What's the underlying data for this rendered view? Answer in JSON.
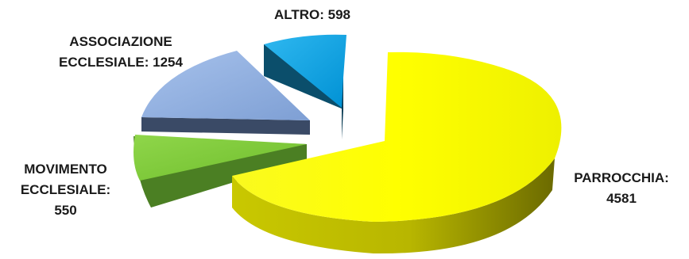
{
  "chart_data": {
    "type": "pie",
    "title": "",
    "series": [
      {
        "categories": [
          "PARROCCHIA",
          "MOVIMENTO ECCLESIALE",
          "ASSOCIAZIONE ECCLESIALE",
          "ALTRO"
        ],
        "values": [
          4581,
          550,
          1254,
          598
        ],
        "colors": [
          "#ffff00",
          "#7fcc3a",
          "#8eaee0",
          "#0aa6e8"
        ]
      }
    ],
    "labels": [
      {
        "lines": [
          "PARROCCHIA:",
          "4581"
        ]
      },
      {
        "lines": [
          "MOVIMENTO",
          "ECCLESIALE:",
          "550"
        ]
      },
      {
        "lines": [
          "ASSOCIAZIONE",
          "ECCLESIALE: 1254"
        ]
      },
      {
        "lines": [
          "ALTRO: 598"
        ]
      }
    ],
    "style": "3d-exploded",
    "legend": "none"
  }
}
